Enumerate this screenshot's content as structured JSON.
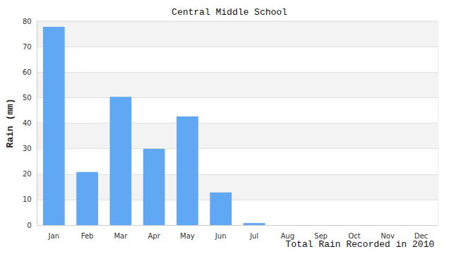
{
  "chart_data": {
    "type": "bar",
    "title": "Central Middle School",
    "xlabel": "Total Rain Recorded in 2010",
    "ylabel": "Rain (mm)",
    "categories": [
      "Jan",
      "Feb",
      "Mar",
      "Apr",
      "May",
      "Jun",
      "Jul",
      "Aug",
      "Sep",
      "Oct",
      "Nov",
      "Dec"
    ],
    "values": [
      77.8,
      20.8,
      50.3,
      29.9,
      42.6,
      12.8,
      0.8,
      0,
      0,
      0,
      0,
      0
    ],
    "color": "#60a8f4",
    "ylim": [
      0,
      80
    ],
    "yticks": [
      0,
      10,
      20,
      30,
      40,
      50,
      60,
      70,
      80
    ],
    "grid": true
  }
}
